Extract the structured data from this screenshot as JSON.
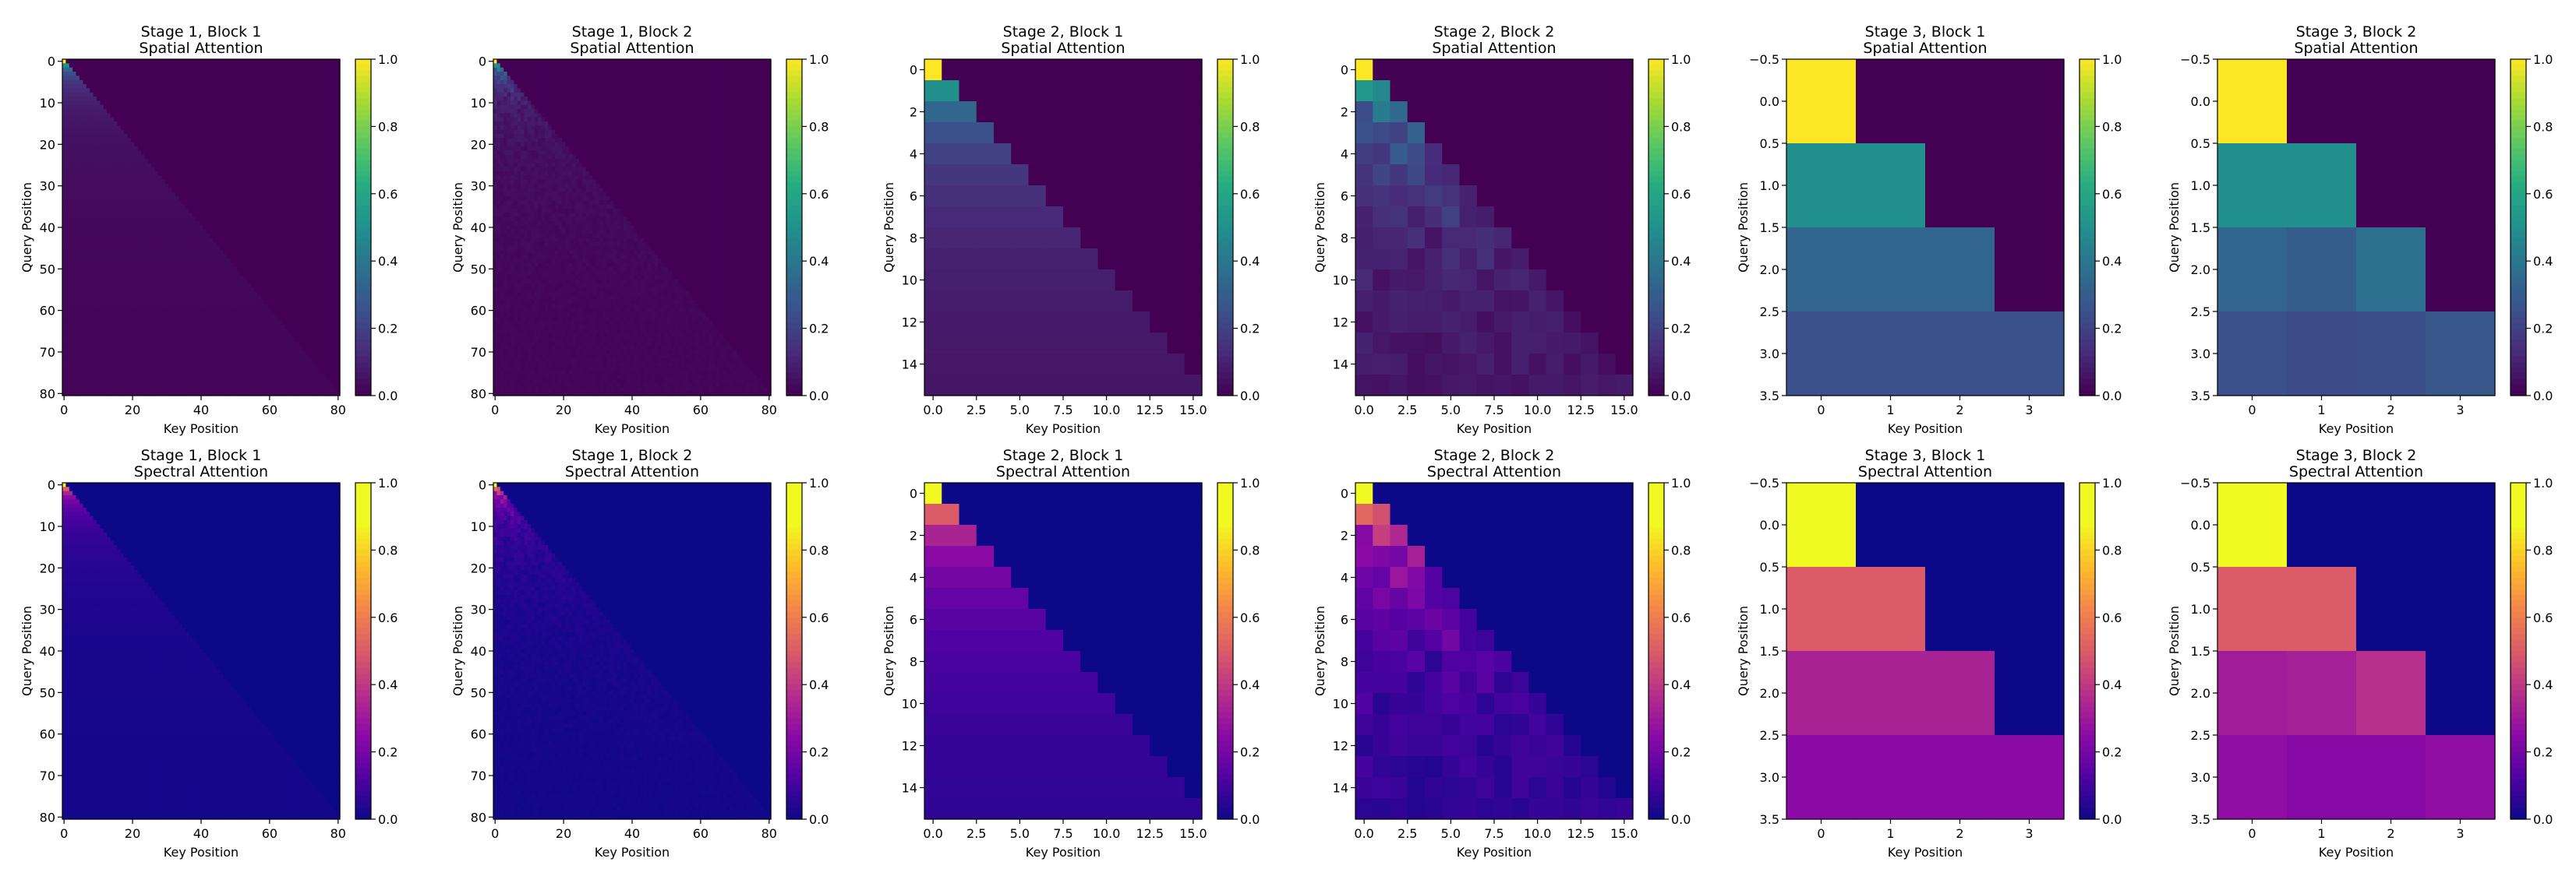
{
  "chart_data": [
    {
      "type": "heatmap",
      "title": "Stage 1, Block 1",
      "subtitle": "Spatial Attention",
      "xlabel": "Key Position",
      "ylabel": "Query Position",
      "size": 81,
      "colormap": "viridis",
      "cbar_range": [
        0,
        1
      ],
      "cbar_ticks": [
        "0.0",
        "0.2",
        "0.4",
        "0.6",
        "0.8",
        "1.0"
      ],
      "xticks": [
        "0",
        "20",
        "40",
        "60",
        "80"
      ],
      "yticks": [
        "0",
        "10",
        "20",
        "30",
        "40",
        "50",
        "60",
        "70",
        "80"
      ],
      "pattern": "lower_triangular_uniform_1_over_row"
    },
    {
      "type": "heatmap",
      "title": "Stage 1, Block 2",
      "subtitle": "Spatial Attention",
      "xlabel": "Key Position",
      "ylabel": "Query Position",
      "size": 81,
      "colormap": "viridis",
      "cbar_range": [
        0,
        1
      ],
      "cbar_ticks": [
        "0.0",
        "0.2",
        "0.4",
        "0.6",
        "0.8",
        "1.0"
      ],
      "xticks": [
        "0",
        "20",
        "40",
        "60",
        "80"
      ],
      "yticks": [
        "0",
        "10",
        "20",
        "30",
        "40",
        "50",
        "60",
        "70",
        "80"
      ],
      "pattern": "lower_triangular_noisy_1_over_row"
    },
    {
      "type": "heatmap",
      "title": "Stage 2, Block 1",
      "subtitle": "Spatial Attention",
      "xlabel": "Key Position",
      "ylabel": "Query Position",
      "size": 16,
      "colormap": "viridis",
      "cbar_range": [
        0,
        1
      ],
      "cbar_ticks": [
        "0.0",
        "0.2",
        "0.4",
        "0.6",
        "0.8",
        "1.0"
      ],
      "xticks": [
        "0.0",
        "2.5",
        "5.0",
        "7.5",
        "10.0",
        "12.5",
        "15.0"
      ],
      "yticks": [
        "0",
        "2",
        "4",
        "6",
        "8",
        "10",
        "12",
        "14"
      ],
      "pattern": "lower_triangular_uniform_1_over_row"
    },
    {
      "type": "heatmap",
      "title": "Stage 2, Block 2",
      "subtitle": "Spatial Attention",
      "xlabel": "Key Position",
      "ylabel": "Query Position",
      "size": 16,
      "colormap": "viridis",
      "cbar_range": [
        0,
        1
      ],
      "cbar_ticks": [
        "0.0",
        "0.2",
        "0.4",
        "0.6",
        "0.8",
        "1.0"
      ],
      "xticks": [
        "0.0",
        "2.5",
        "5.0",
        "7.5",
        "10.0",
        "12.5",
        "15.0"
      ],
      "yticks": [
        "0",
        "2",
        "4",
        "6",
        "8",
        "10",
        "12",
        "14"
      ],
      "pattern": "lower_triangular_noisy_1_over_row"
    },
    {
      "type": "heatmap",
      "title": "Stage 3, Block 1",
      "subtitle": "Spatial Attention",
      "xlabel": "Key Position",
      "ylabel": "Query Position",
      "size": 4,
      "colormap": "viridis",
      "cbar_range": [
        0,
        1
      ],
      "cbar_ticks": [
        "0.0",
        "0.2",
        "0.4",
        "0.6",
        "0.8",
        "1.0"
      ],
      "xticks": [
        "0",
        "1",
        "2",
        "3"
      ],
      "yticks": [
        "−0.5",
        "0.0",
        "0.5",
        "1.0",
        "1.5",
        "2.0",
        "2.5",
        "3.0",
        "3.5"
      ],
      "values": [
        [
          1.0,
          0,
          0,
          0
        ],
        [
          0.5,
          0.5,
          0,
          0
        ],
        [
          0.33,
          0.33,
          0.33,
          0
        ],
        [
          0.25,
          0.25,
          0.25,
          0.25
        ]
      ]
    },
    {
      "type": "heatmap",
      "title": "Stage 3, Block 2",
      "subtitle": "Spatial Attention",
      "xlabel": "Key Position",
      "ylabel": "Query Position",
      "size": 4,
      "colormap": "viridis",
      "cbar_range": [
        0,
        1
      ],
      "cbar_ticks": [
        "0.0",
        "0.2",
        "0.4",
        "0.6",
        "0.8",
        "1.0"
      ],
      "xticks": [
        "0",
        "1",
        "2",
        "3"
      ],
      "yticks": [
        "−0.5",
        "0.0",
        "0.5",
        "1.0",
        "1.5",
        "2.0",
        "2.5",
        "3.0",
        "3.5"
      ],
      "values": [
        [
          1.0,
          0,
          0,
          0
        ],
        [
          0.5,
          0.5,
          0,
          0
        ],
        [
          0.33,
          0.3,
          0.37,
          0
        ],
        [
          0.25,
          0.23,
          0.24,
          0.28
        ]
      ]
    },
    {
      "type": "heatmap",
      "title": "Stage 1, Block 1",
      "subtitle": "Spectral Attention",
      "xlabel": "Key Position",
      "ylabel": "Query Position",
      "size": 81,
      "colormap": "plasma",
      "cbar_range": [
        0,
        1
      ],
      "cbar_ticks": [
        "0.0",
        "0.2",
        "0.4",
        "0.6",
        "0.8",
        "1.0"
      ],
      "xticks": [
        "0",
        "20",
        "40",
        "60",
        "80"
      ],
      "yticks": [
        "0",
        "10",
        "20",
        "30",
        "40",
        "50",
        "60",
        "70",
        "80"
      ],
      "pattern": "lower_triangular_uniform_1_over_row"
    },
    {
      "type": "heatmap",
      "title": "Stage 1, Block 2",
      "subtitle": "Spectral Attention",
      "xlabel": "Key Position",
      "ylabel": "Query Position",
      "size": 81,
      "colormap": "plasma",
      "cbar_range": [
        0,
        1
      ],
      "cbar_ticks": [
        "0.0",
        "0.2",
        "0.4",
        "0.6",
        "0.8",
        "1.0"
      ],
      "xticks": [
        "0",
        "20",
        "40",
        "60",
        "80"
      ],
      "yticks": [
        "0",
        "10",
        "20",
        "30",
        "40",
        "50",
        "60",
        "70",
        "80"
      ],
      "pattern": "lower_triangular_noisy_1_over_row"
    },
    {
      "type": "heatmap",
      "title": "Stage 2, Block 1",
      "subtitle": "Spectral Attention",
      "xlabel": "Key Position",
      "ylabel": "Query Position",
      "size": 16,
      "colormap": "plasma",
      "cbar_range": [
        0,
        1
      ],
      "cbar_ticks": [
        "0.0",
        "0.2",
        "0.4",
        "0.6",
        "0.8",
        "1.0"
      ],
      "xticks": [
        "0.0",
        "2.5",
        "5.0",
        "7.5",
        "10.0",
        "12.5",
        "15.0"
      ],
      "yticks": [
        "0",
        "2",
        "4",
        "6",
        "8",
        "10",
        "12",
        "14"
      ],
      "pattern": "lower_triangular_uniform_1_over_row"
    },
    {
      "type": "heatmap",
      "title": "Stage 2, Block 2",
      "subtitle": "Spectral Attention",
      "xlabel": "Key Position",
      "ylabel": "Query Position",
      "size": 16,
      "colormap": "plasma",
      "cbar_range": [
        0,
        1
      ],
      "cbar_ticks": [
        "0.0",
        "0.2",
        "0.4",
        "0.6",
        "0.8",
        "1.0"
      ],
      "xticks": [
        "0.0",
        "2.5",
        "5.0",
        "7.5",
        "10.0",
        "12.5",
        "15.0"
      ],
      "yticks": [
        "0",
        "2",
        "4",
        "6",
        "8",
        "10",
        "12",
        "14"
      ],
      "pattern": "lower_triangular_noisy_1_over_row"
    },
    {
      "type": "heatmap",
      "title": "Stage 3, Block 1",
      "subtitle": "Spectral Attention",
      "xlabel": "Key Position",
      "ylabel": "Query Position",
      "size": 4,
      "colormap": "plasma",
      "cbar_range": [
        0,
        1
      ],
      "cbar_ticks": [
        "0.0",
        "0.2",
        "0.4",
        "0.6",
        "0.8",
        "1.0"
      ],
      "xticks": [
        "0",
        "1",
        "2",
        "3"
      ],
      "yticks": [
        "−0.5",
        "0.0",
        "0.5",
        "1.0",
        "1.5",
        "2.0",
        "2.5",
        "3.0",
        "3.5"
      ],
      "values": [
        [
          1.0,
          0,
          0,
          0
        ],
        [
          0.5,
          0.5,
          0,
          0
        ],
        [
          0.33,
          0.33,
          0.33,
          0
        ],
        [
          0.25,
          0.25,
          0.25,
          0.25
        ]
      ]
    },
    {
      "type": "heatmap",
      "title": "Stage 3, Block 2",
      "subtitle": "Spectral Attention",
      "xlabel": "Key Position",
      "ylabel": "Query Position",
      "size": 4,
      "colormap": "plasma",
      "cbar_range": [
        0,
        1
      ],
      "cbar_ticks": [
        "0.0",
        "0.2",
        "0.4",
        "0.6",
        "0.8",
        "1.0"
      ],
      "xticks": [
        "0",
        "1",
        "2",
        "3"
      ],
      "yticks": [
        "−0.5",
        "0.0",
        "0.5",
        "1.0",
        "1.5",
        "2.0",
        "2.5",
        "3.0",
        "3.5"
      ],
      "values": [
        [
          1.0,
          0,
          0,
          0
        ],
        [
          0.5,
          0.5,
          0,
          0
        ],
        [
          0.31,
          0.32,
          0.37,
          0
        ],
        [
          0.26,
          0.24,
          0.24,
          0.26
        ]
      ]
    }
  ]
}
